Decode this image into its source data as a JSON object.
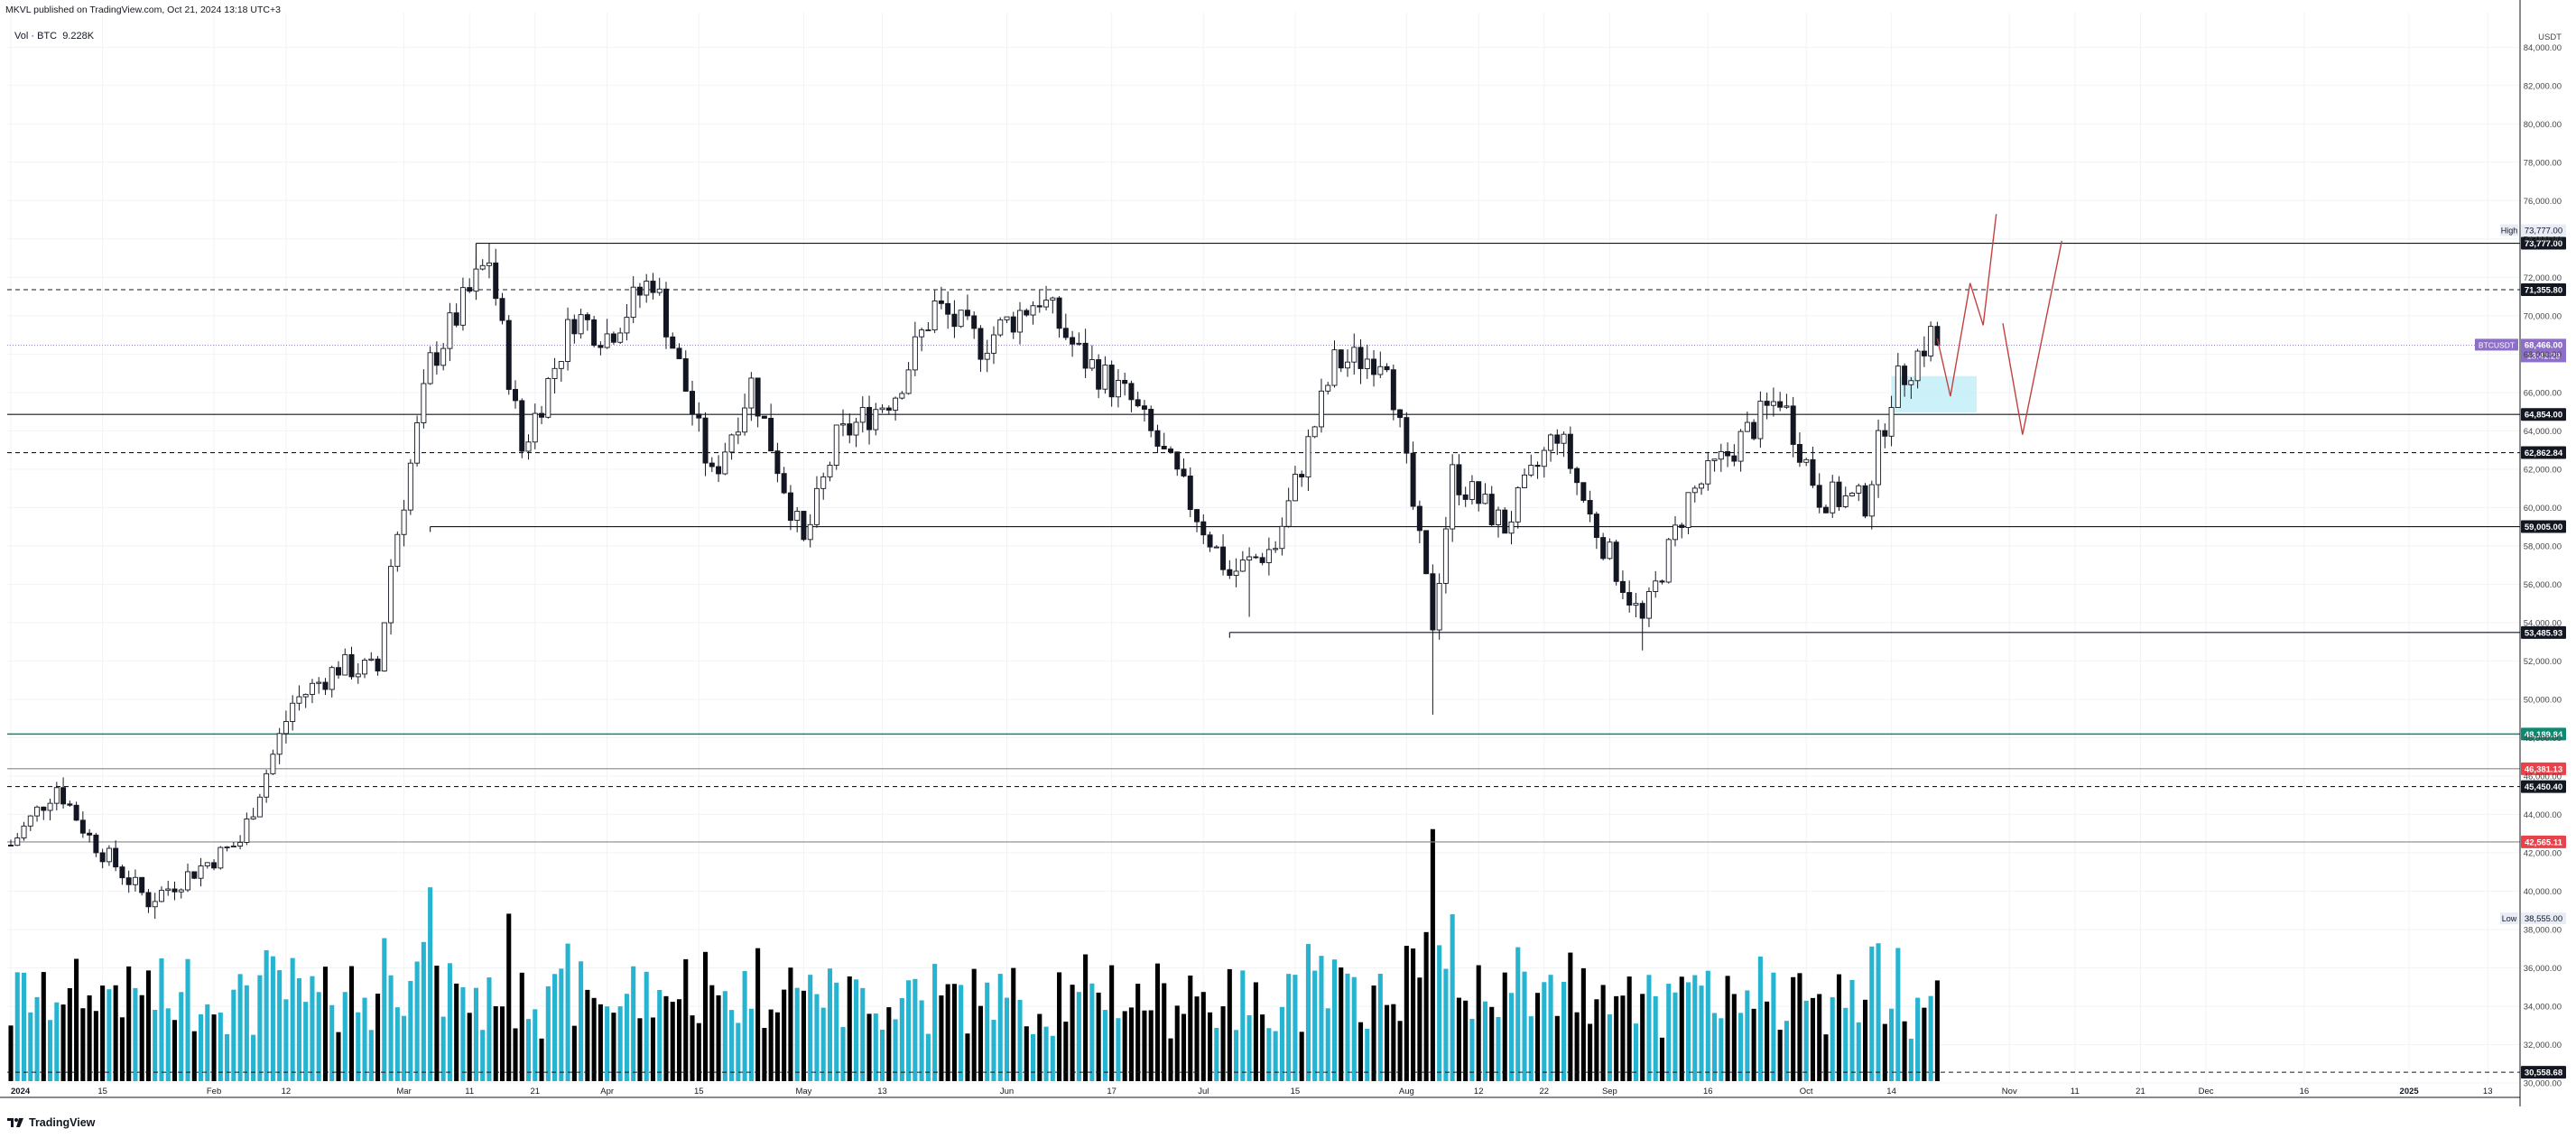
{
  "header": {
    "publisher_line": "MKVL published on TradingView.com, Oct 21, 2024 13:18 UTC+3",
    "vol_label": "Vol · BTC",
    "vol_value": "9.228K"
  },
  "branding": {
    "logo_text": "TradingView",
    "logo_icon": "tradingview-logo-icon"
  },
  "colors": {
    "bull": "#26b4d1",
    "bear": "#000000",
    "grid": "#f2f3f5",
    "purple": "#8e6fc7",
    "green": "#0e8a72",
    "red": "#e8434a",
    "zone": "#c8f0f8",
    "projection": "#c2413f",
    "axis_text": "#444444"
  },
  "chart_data": {
    "type": "candlestick",
    "symbol": "BTCUSDT",
    "currency_label": "USDT",
    "y_axis": {
      "min": 30000,
      "max": 85800,
      "ticks": [
        "84,000.00",
        "82,000.00",
        "80,000.00",
        "78,000.00",
        "76,000.00",
        "74,000.00",
        "72,000.00",
        "70,000.00",
        "68,000.00",
        "66,000.00",
        "64,000.00",
        "62,000.00",
        "60,000.00",
        "58,000.00",
        "56,000.00",
        "54,000.00",
        "52,000.00",
        "50,000.00",
        "48,000.00",
        "46,000.00",
        "44,000.00",
        "42,000.00",
        "40,000.00",
        "38,000.00",
        "36,000.00",
        "34,000.00",
        "32,000.00",
        "30,000.00"
      ]
    },
    "x_axis": {
      "labels": [
        {
          "label": "2024",
          "date": "2024-01-01",
          "bold": true
        },
        {
          "label": "15",
          "date": "2024-01-15"
        },
        {
          "label": "Feb",
          "date": "2024-02-01"
        },
        {
          "label": "12",
          "date": "2024-02-12"
        },
        {
          "label": "Mar",
          "date": "2024-03-01"
        },
        {
          "label": "11",
          "date": "2024-03-11"
        },
        {
          "label": "21",
          "date": "2024-03-21"
        },
        {
          "label": "Apr",
          "date": "2024-04-01"
        },
        {
          "label": "15",
          "date": "2024-04-15"
        },
        {
          "label": "May",
          "date": "2024-05-01"
        },
        {
          "label": "13",
          "date": "2024-05-13"
        },
        {
          "label": "Jun",
          "date": "2024-06-01"
        },
        {
          "label": "17",
          "date": "2024-06-17"
        },
        {
          "label": "Jul",
          "date": "2024-07-01"
        },
        {
          "label": "15",
          "date": "2024-07-15"
        },
        {
          "label": "Aug",
          "date": "2024-08-01"
        },
        {
          "label": "12",
          "date": "2024-08-12"
        },
        {
          "label": "22",
          "date": "2024-08-22"
        },
        {
          "label": "Sep",
          "date": "2024-09-01"
        },
        {
          "label": "16",
          "date": "2024-09-16"
        },
        {
          "label": "Oct",
          "date": "2024-10-01"
        },
        {
          "label": "14",
          "date": "2024-10-14"
        },
        {
          "label": "Nov",
          "date": "2024-11-01"
        },
        {
          "label": "11",
          "date": "2024-11-11"
        },
        {
          "label": "21",
          "date": "2024-11-21"
        },
        {
          "label": "Dec",
          "date": "2024-12-01"
        },
        {
          "label": "16",
          "date": "2024-12-16"
        },
        {
          "label": "2025",
          "date": "2025-01-01",
          "bold": true
        },
        {
          "label": "13",
          "date": "2025-01-13"
        }
      ]
    },
    "trend_anchors": [
      {
        "date": "2024-01-01",
        "price": 42400
      },
      {
        "date": "2024-01-08",
        "price": 45500
      },
      {
        "date": "2024-01-13",
        "price": 42800
      },
      {
        "date": "2024-01-22",
        "price": 39500
      },
      {
        "date": "2024-02-05",
        "price": 42600
      },
      {
        "date": "2024-02-13",
        "price": 49800
      },
      {
        "date": "2024-02-20",
        "price": 51700
      },
      {
        "date": "2024-02-26",
        "price": 51500
      },
      {
        "date": "2024-02-28",
        "price": 57000
      },
      {
        "date": "2024-03-05",
        "price": 67500
      },
      {
        "date": "2024-03-14",
        "price": 73000
      },
      {
        "date": "2024-03-19",
        "price": 63000
      },
      {
        "date": "2024-03-27",
        "price": 70000
      },
      {
        "date": "2024-04-01",
        "price": 69000
      },
      {
        "date": "2024-04-08",
        "price": 72000
      },
      {
        "date": "2024-04-17",
        "price": 61500
      },
      {
        "date": "2024-04-23",
        "price": 66500
      },
      {
        "date": "2024-05-01",
        "price": 58000
      },
      {
        "date": "2024-05-06",
        "price": 63500
      },
      {
        "date": "2024-05-15",
        "price": 66000
      },
      {
        "date": "2024-05-21",
        "price": 70500
      },
      {
        "date": "2024-05-28",
        "price": 68500
      },
      {
        "date": "2024-06-06",
        "price": 71000
      },
      {
        "date": "2024-06-12",
        "price": 68000
      },
      {
        "date": "2024-06-20",
        "price": 65500
      },
      {
        "date": "2024-06-27",
        "price": 61500
      },
      {
        "date": "2024-07-05",
        "price": 56500
      },
      {
        "date": "2024-07-12",
        "price": 58000
      },
      {
        "date": "2024-07-21",
        "price": 67500
      },
      {
        "date": "2024-07-29",
        "price": 68000
      },
      {
        "date": "2024-08-05",
        "price": 54000
      },
      {
        "date": "2024-08-08",
        "price": 61700
      },
      {
        "date": "2024-08-16",
        "price": 59000
      },
      {
        "date": "2024-08-24",
        "price": 64000
      },
      {
        "date": "2024-08-29",
        "price": 59500
      },
      {
        "date": "2024-09-06",
        "price": 54000
      },
      {
        "date": "2024-09-13",
        "price": 60500
      },
      {
        "date": "2024-09-27",
        "price": 65800
      },
      {
        "date": "2024-10-03",
        "price": 60600
      },
      {
        "date": "2024-10-10",
        "price": 60300
      },
      {
        "date": "2024-10-14",
        "price": 66000
      },
      {
        "date": "2024-10-20",
        "price": 69000
      },
      {
        "date": "2024-10-21",
        "price": 68466
      }
    ],
    "levels": [
      {
        "price": 73777.0,
        "label": "73,777.00",
        "style": "solid",
        "line": "#131722",
        "tag_bg": "#131722",
        "tag_fg": "#ffffff",
        "from": "2024-03-12"
      },
      {
        "price": 71355.8,
        "label": "71,355.80",
        "style": "dashed",
        "line": "#131722",
        "tag_bg": "#131722",
        "tag_fg": "#ffffff",
        "from": "start"
      },
      {
        "price": 64854.0,
        "label": "64,854.00",
        "style": "solid",
        "line": "#131722",
        "tag_bg": "#131722",
        "tag_fg": "#ffffff",
        "from": "start"
      },
      {
        "price": 62862.84,
        "label": "62,862.84",
        "style": "dashed",
        "line": "#131722",
        "tag_bg": "#131722",
        "tag_fg": "#ffffff",
        "from": "start"
      },
      {
        "price": 59005.0,
        "label": "59,005.00",
        "style": "solid",
        "line": "#131722",
        "tag_bg": "#131722",
        "tag_fg": "#ffffff",
        "from": "2024-03-05"
      },
      {
        "price": 53485.93,
        "label": "53,485.93",
        "style": "solid",
        "line": "#131722",
        "tag_bg": "#131722",
        "tag_fg": "#ffffff",
        "from": "2024-07-05"
      },
      {
        "price": 48189.84,
        "label": "48,189.84",
        "style": "solid",
        "line": "#0e8a72",
        "tag_bg": "#0e8a72",
        "tag_fg": "#ffffff",
        "from": "start"
      },
      {
        "price": 46381.13,
        "label": "46,381.13",
        "style": "solid",
        "line": "#888888",
        "tag_bg": "#e8434a",
        "tag_fg": "#ffffff",
        "from": "start"
      },
      {
        "price": 45450.4,
        "label": "45,450.40",
        "style": "dashed",
        "line": "#131722",
        "tag_bg": "#131722",
        "tag_fg": "#ffffff",
        "from": "start"
      },
      {
        "price": 42565.11,
        "label": "42,565.11",
        "style": "solid",
        "line": "#888888",
        "tag_bg": "#e8434a",
        "tag_fg": "#ffffff",
        "from": "start"
      },
      {
        "price": 30558.68,
        "label": "30,558.68",
        "style": "dashed",
        "line": "#131722",
        "tag_bg": "#131722",
        "tag_fg": "#ffffff",
        "from": "start"
      }
    ],
    "high": {
      "label": "High",
      "value": "73,777.00",
      "price": 73777.0
    },
    "low": {
      "label": "Low",
      "value": "38,555.00",
      "price": 38555.0
    },
    "current": {
      "symbol": "BTCUSDT",
      "value": "68,466.00",
      "countdown": "13:41:29",
      "price": 68466.0
    },
    "zone": {
      "from": "2024-10-14",
      "to": "2024-10-27",
      "price_top": 66850,
      "price_bottom": 64950
    },
    "projections": [
      [
        {
          "date": "2024-10-21",
          "price": 68800
        },
        {
          "date": "2024-10-23",
          "price": 65800
        },
        {
          "date": "2024-10-26",
          "price": 71700
        },
        {
          "date": "2024-10-28",
          "price": 69500
        },
        {
          "date": "2024-10-30",
          "price": 75300
        }
      ],
      [
        {
          "date": "2024-10-31",
          "price": 69600
        },
        {
          "date": "2024-11-03",
          "price": 63800
        },
        {
          "date": "2024-11-09",
          "price": 73900
        }
      ]
    ],
    "volume": {
      "scale_max": 13500
    }
  }
}
